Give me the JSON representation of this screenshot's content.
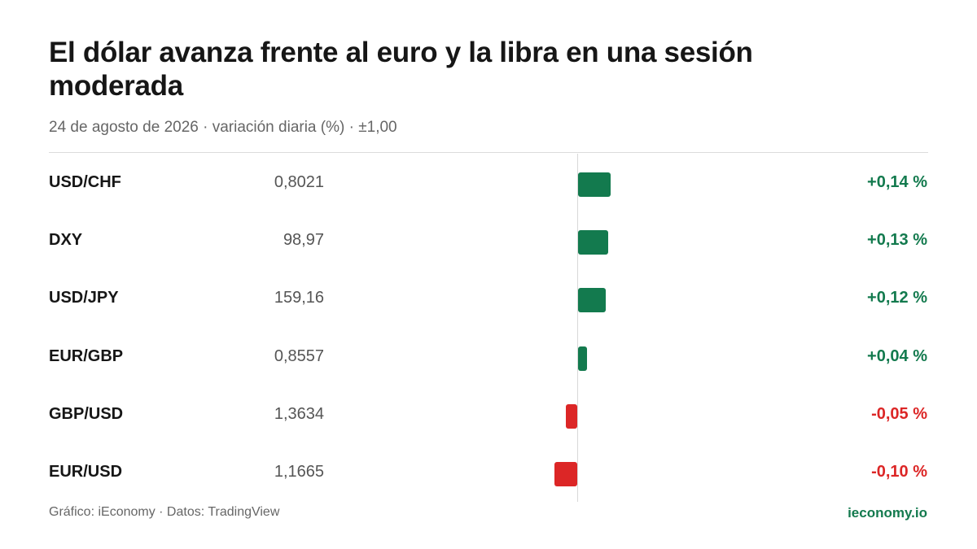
{
  "chart": {
    "title": "El dólar avanza frente al euro y la libra en una sesión moderada",
    "subtitle": "24 de agosto de 2026 · variación diaria (%) · ±1,00"
  },
  "chart_data": {
    "type": "bar",
    "orientation": "horizontal",
    "categories": [
      "USD/CHF",
      "DXY",
      "USD/JPY",
      "EUR/GBP",
      "GBP/USD",
      "EUR/USD"
    ],
    "prices": [
      "0,8021",
      "98,97",
      "159,16",
      "0,8557",
      "1,3634",
      "1,1665"
    ],
    "values": [
      0.14,
      0.13,
      0.12,
      0.04,
      -0.05,
      -0.1
    ],
    "value_labels": [
      "+0,14 %",
      "+0,13 %",
      "+0,12 %",
      "+0,04 %",
      "-0,05 %",
      "-0,10 %"
    ],
    "xlim": [
      -1.0,
      1.0
    ],
    "colors": {
      "positive": "#137a4e",
      "negative": "#dc2626"
    },
    "grid": false
  },
  "footer": {
    "credit": "Gráfico: iEconomy · Datos: TradingView",
    "site": "ieconomy.io"
  }
}
